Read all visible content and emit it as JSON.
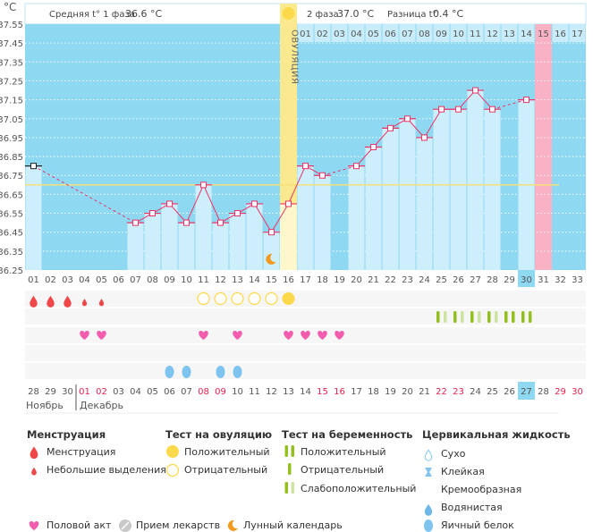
{
  "unit": "°C",
  "header": {
    "phase1_label": "Средняя t° 1 фаза",
    "phase1_value": "36.6 °C",
    "phase2_label": "2 фаза",
    "phase2_value": "37.0 °C",
    "diff_label": "Разница t°",
    "diff_value": "0.4 °C"
  },
  "ovulation_label": "ОВУЛЯЦИЯ",
  "colors": {
    "plot_bg": "#8fd8f2",
    "bar": "#cdeefb",
    "ovulation": "#fbe98f",
    "pink_day": "#f8b2c4",
    "line": "#ee3366",
    "cover_line": "#f5e07a",
    "weekend": "#e8224f"
  },
  "chart_data": {
    "type": "line",
    "ylim": [
      36.25,
      37.55
    ],
    "y_ticks": [
      "37.55",
      "37.45",
      "37.35",
      "37.25",
      "37.15",
      "37.05",
      "36.95",
      "36.85",
      "36.75",
      "36.65",
      "36.55",
      "36.45",
      "36.35",
      "36.25"
    ],
    "grid": true,
    "x_ticks": [
      "01",
      "02",
      "03",
      "04",
      "05",
      "06",
      "07",
      "08",
      "09",
      "10",
      "11",
      "12",
      "13",
      "14",
      "15",
      "16",
      "17",
      "18",
      "19",
      "20",
      "21",
      "22",
      "23",
      "24",
      "25",
      "26",
      "27",
      "28",
      "29",
      "30",
      "31",
      "32",
      "33"
    ],
    "temperatures": [
      36.8,
      null,
      null,
      null,
      null,
      null,
      36.5,
      36.55,
      36.6,
      36.5,
      36.7,
      36.5,
      36.55,
      36.6,
      36.45,
      36.6,
      36.8,
      36.75,
      null,
      36.8,
      36.9,
      37.0,
      37.05,
      36.95,
      37.1,
      37.1,
      37.2,
      37.1,
      null,
      37.15,
      null,
      null,
      null
    ],
    "cover_line": 36.7,
    "ovulation_day": 16,
    "pink_day": 31,
    "highlight_day": 30,
    "moon_day": 15,
    "phase2_days": [
      "01",
      "02",
      "03",
      "04",
      "05",
      "06",
      "07",
      "08",
      "09",
      "10",
      "11",
      "12",
      "13",
      "14",
      "15",
      "16",
      "17"
    ]
  },
  "events": {
    "menstruation_heavy": [
      1,
      2,
      3
    ],
    "menstruation_light": [
      4,
      5
    ],
    "ovulation_test_negative": [
      11,
      12,
      13,
      14,
      15
    ],
    "ovulation_test_positive": [
      16
    ],
    "pregnancy_test_weak": [
      25,
      26,
      27,
      28
    ],
    "pregnancy_test_positive": [
      29,
      30
    ],
    "sex": [
      4,
      5,
      11,
      13,
      16,
      17,
      18,
      19
    ],
    "cervical_egg_white": [
      9,
      10,
      12,
      13
    ]
  },
  "calendar": {
    "dates": [
      "28",
      "29",
      "30",
      "01",
      "02",
      "03",
      "04",
      "05",
      "06",
      "07",
      "08",
      "09",
      "10",
      "11",
      "12",
      "13",
      "14",
      "15",
      "16",
      "17",
      "18",
      "19",
      "20",
      "21",
      "22",
      "23",
      "24",
      "25",
      "26",
      "27",
      "28",
      "29",
      "30"
    ],
    "weekend_days": [
      4,
      5,
      11,
      12,
      18,
      19,
      25,
      26,
      32,
      33
    ],
    "today_day": 30,
    "month1": "Ноябрь",
    "month2": "Декабрь"
  },
  "legend": {
    "menstruation_title": "Менструация",
    "menstruation": "Менструация",
    "spotting": "Небольшие выделения",
    "ovtest_title": "Тест на овуляцию",
    "ovtest_positive": "Положительный",
    "ovtest_negative": "Отрицательный",
    "pregtest_title": "Тест на беременность",
    "pregtest_positive": "Положительный",
    "pregtest_negative": "Отрицательный",
    "pregtest_weak": "Слабоположительный",
    "fluid_title": "Цервикальная жидкость",
    "fluid_dry": "Сухо",
    "fluid_sticky": "Клейкая",
    "fluid_creamy": "Кремообразная",
    "fluid_watery": "Водянистая",
    "fluid_eggwhite": "Яичный белок",
    "sex": "Половой акт",
    "medication": "Прием лекарств",
    "moon": "Лунный календарь"
  }
}
